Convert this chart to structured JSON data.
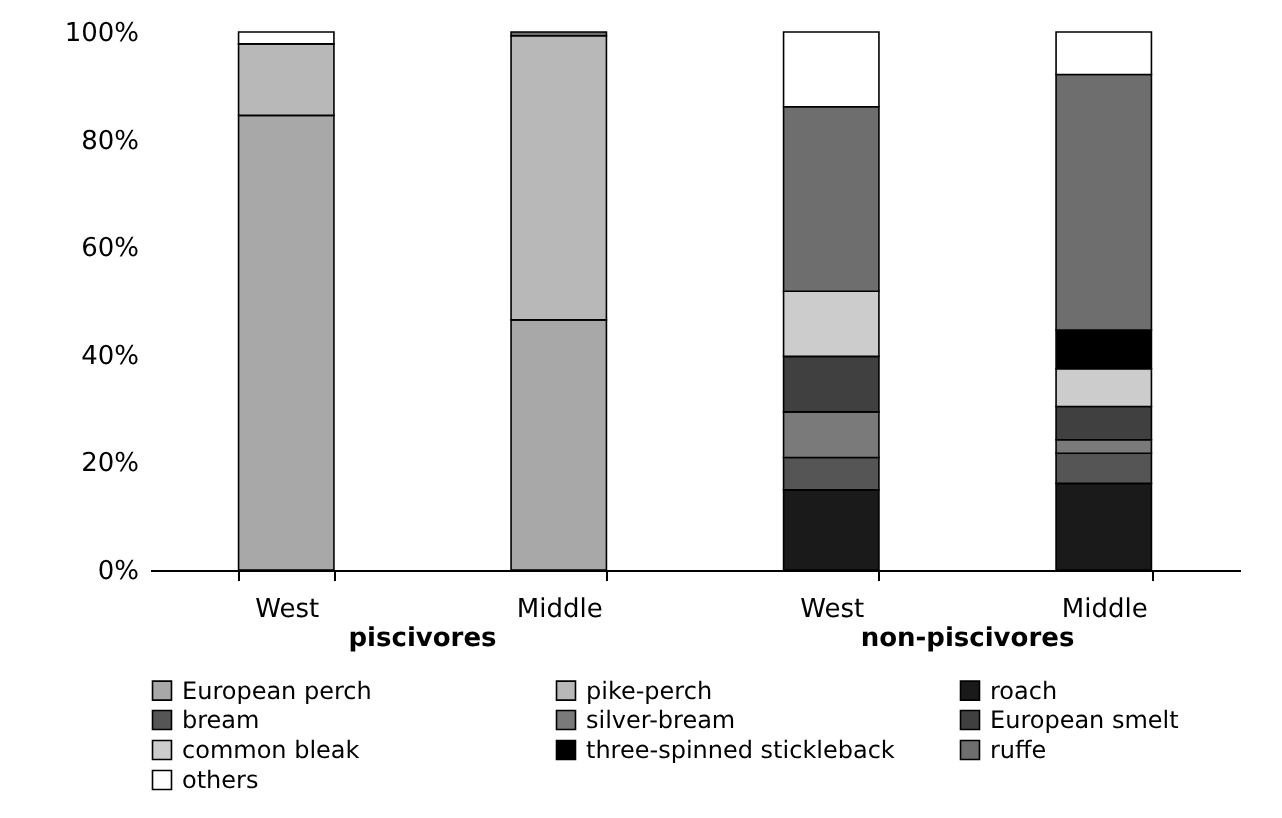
{
  "chart_data": {
    "type": "bar",
    "stacked": true,
    "categories": [
      "West",
      "Middle",
      "West",
      "Middle"
    ],
    "annotations": [
      "piscivores",
      "non-piscivores"
    ],
    "ylim": [
      0,
      100
    ],
    "yticks": [
      {
        "value": 0,
        "label": "0%"
      },
      {
        "value": 20,
        "label": "20%"
      },
      {
        "value": 40,
        "label": "40%"
      },
      {
        "value": 60,
        "label": "60%"
      },
      {
        "value": 80,
        "label": "80%"
      },
      {
        "value": 100,
        "label": "100%"
      }
    ],
    "grid": false,
    "legend": "bottom",
    "series": [
      {
        "name": "European perch",
        "color": "#a8a8a8",
        "values": [
          84.5,
          46.5,
          null,
          null
        ]
      },
      {
        "name": "pike-perch",
        "color": "#b8b8b8",
        "values": [
          13.3,
          52.8,
          null,
          null
        ]
      },
      {
        "name": "roach",
        "color": "#1a1a1a",
        "values": [
          null,
          null,
          14.9,
          16.1
        ]
      },
      {
        "name": "bream",
        "color": "#555555",
        "values": [
          null,
          null,
          6.0,
          5.6
        ]
      },
      {
        "name": "silver-bream",
        "color": "#7a7a7a",
        "values": [
          null,
          null,
          8.5,
          2.5
        ]
      },
      {
        "name": "European smelt",
        "color": "#404040",
        "values": [
          null,
          null,
          10.3,
          6.2
        ]
      },
      {
        "name": "common bleak",
        "color": "#cccccc",
        "values": [
          null,
          null,
          12.1,
          7.0
        ]
      },
      {
        "name": "three-spinned stickleback",
        "color": "#000000",
        "values": [
          null,
          null,
          null,
          7.2
        ]
      },
      {
        "name": "ruffe",
        "color": "#6e6e6e",
        "values": [
          null,
          0.7,
          34.3,
          47.5
        ]
      },
      {
        "name": "others",
        "color": "#ffffff",
        "values": [
          2.2,
          null,
          13.9,
          7.9
        ]
      }
    ]
  }
}
